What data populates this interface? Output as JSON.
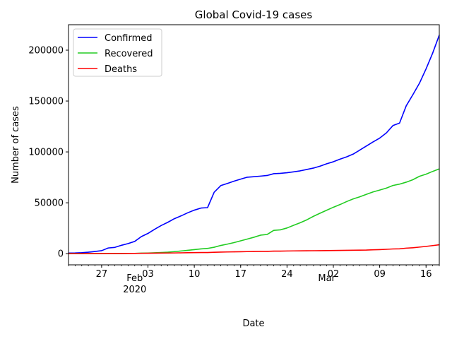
{
  "chart_data": {
    "type": "line",
    "title": "Global Covid-19 cases",
    "xlabel": "Date",
    "ylabel": "Number of cases",
    "x_start": "2020-01-22",
    "x_end": "2020-03-18",
    "ylim": [
      -11000,
      225000
    ],
    "y_ticks": [
      0,
      50000,
      100000,
      150000,
      200000
    ],
    "x_major_ticks": [
      {
        "date": "2020-01-27",
        "label": "27"
      },
      {
        "date": "2020-02-03",
        "label": "03"
      },
      {
        "date": "2020-02-10",
        "label": "10"
      },
      {
        "date": "2020-02-17",
        "label": "17"
      },
      {
        "date": "2020-02-24",
        "label": "24"
      },
      {
        "date": "2020-03-02",
        "label": "02"
      },
      {
        "date": "2020-03-09",
        "label": "09"
      },
      {
        "date": "2020-03-16",
        "label": "16"
      }
    ],
    "x_month_labels": [
      {
        "date": "2020-02-01",
        "label": "Feb",
        "sublabel": "2020"
      },
      {
        "date": "2020-03-01",
        "label": "Mar",
        "sublabel": ""
      }
    ],
    "grid": false,
    "legend_position": "top-left",
    "series": [
      {
        "name": "Confirmed",
        "color": "#0000ff",
        "values": [
          555,
          654,
          941,
          1434,
          2118,
          2927,
          5578,
          6166,
          8234,
          9927,
          12038,
          16787,
          19881,
          23892,
          27635,
          30817,
          34391,
          37120,
          40150,
          42762,
          44802,
          45221,
          60368,
          66885,
          69030,
          71224,
          73258,
          75136,
          75639,
          76197,
          76819,
          78572,
          78958,
          79561,
          80406,
          81388,
          82746,
          84112,
          86011,
          88369,
          90306,
          92840,
          95120,
          97886,
          101801,
          105847,
          109821,
          113590,
          118620,
          125875,
          128352,
          145205,
          156101,
          167454,
          181574,
          197102,
          214821
        ]
      },
      {
        "name": "Recovered",
        "color": "#22cc22",
        "values": [
          28,
          30,
          36,
          39,
          52,
          61,
          107,
          126,
          143,
          222,
          284,
          472,
          623,
          852,
          1124,
          1487,
          2011,
          2616,
          3244,
          3946,
          4683,
          5150,
          6295,
          8058,
          9395,
          10865,
          12583,
          14352,
          16121,
          18177,
          18890,
          22886,
          23394,
          25227,
          27905,
          30384,
          33277,
          36711,
          39782,
          42716,
          45602,
          48229,
          51171,
          53797,
          55866,
          58359,
          60694,
          62494,
          64404,
          67003,
          68324,
          70251,
          72624,
          76034,
          78088,
          80840,
          83312
        ]
      },
      {
        "name": "Deaths",
        "color": "#ff0000",
        "values": [
          17,
          18,
          26,
          42,
          56,
          82,
          131,
          133,
          171,
          213,
          259,
          362,
          426,
          492,
          564,
          634,
          719,
          806,
          906,
          1013,
          1113,
          1118,
          1371,
          1523,
          1666,
          1770,
          1868,
          2007,
          2122,
          2247,
          2251,
          2458,
          2469,
          2629,
          2708,
          2770,
          2814,
          2872,
          2941,
          2996,
          3085,
          3160,
          3254,
          3348,
          3460,
          3558,
          3802,
          3988,
          4262,
          4615,
          4720,
          5404,
          5819,
          6440,
          7126,
          7905,
          8733
        ]
      }
    ]
  }
}
